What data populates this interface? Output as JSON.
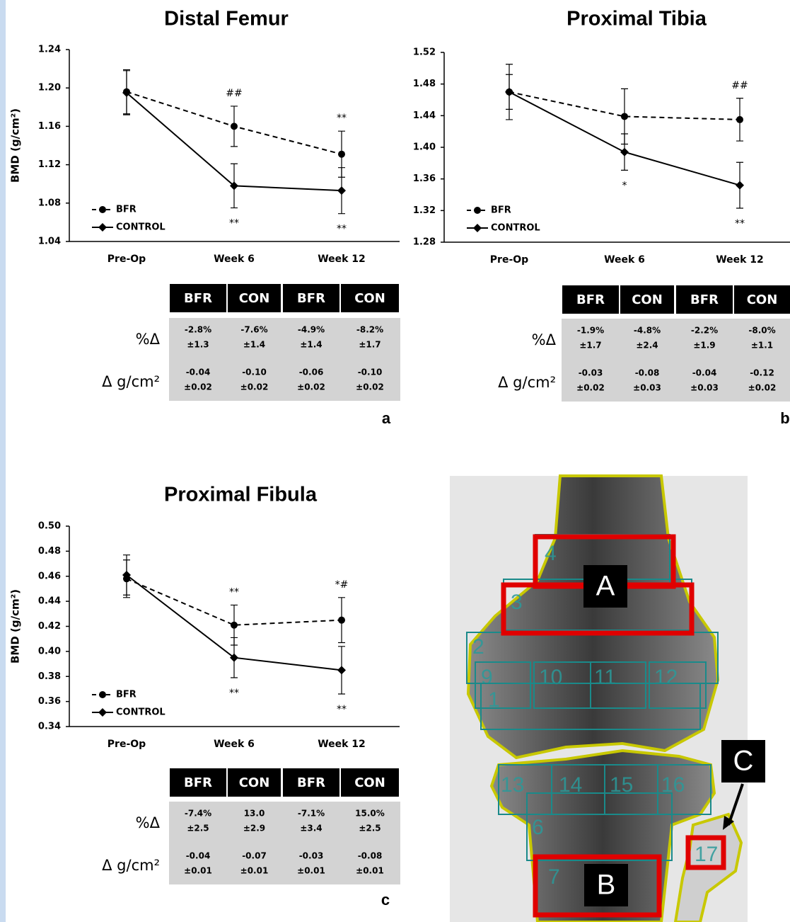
{
  "chart_data": [
    {
      "type": "line",
      "title": "Distal Femur",
      "y_label": "BMD (g/cm²)",
      "categories": [
        "Pre-Op",
        "Week 6",
        "Week 12"
      ],
      "series": [
        {
          "name": "BFR",
          "color": "#000000",
          "line_style": "dashed",
          "marker": "circle",
          "values": [
            1.196,
            1.16,
            1.131
          ],
          "errors": [
            0.023,
            0.021,
            0.024
          ]
        },
        {
          "name": "CONTROL",
          "color": "#000000",
          "line_style": "solid",
          "marker": "diamond",
          "values": [
            1.195,
            1.098,
            1.093
          ],
          "errors": [
            0.023,
            0.023,
            0.024
          ]
        }
      ],
      "ylim": [
        1.04,
        1.24
      ],
      "yticks": [
        1.04,
        1.08,
        1.12,
        1.16,
        {
          "value": 1.2,
          "label": "1.20"
        },
        1.24
      ],
      "legend": "lower left",
      "annotations": [
        {
          "text": "##",
          "x": "Week 6",
          "series": "BFR"
        },
        {
          "text": "**",
          "x": "Week 12",
          "series": "BFR"
        },
        {
          "text": "**",
          "x": "Week 6",
          "series": "CONTROL"
        },
        {
          "text": "**",
          "x": "Week 12",
          "series": "CONTROL"
        }
      ],
      "panel_label": "a",
      "table": {
        "columns": [
          "BFR",
          "CON",
          "BFR",
          "CON"
        ],
        "rows": [
          {
            "label": "%Δ",
            "cells": [
              [
                "-2.8%",
                "±1.3"
              ],
              [
                "-7.6%",
                "±1.4"
              ],
              [
                "-4.9%",
                "±1.4"
              ],
              [
                "-8.2%",
                "±1.7"
              ]
            ]
          },
          {
            "label": "Δ g/cm²",
            "cells": [
              [
                "-0.04",
                "±0.02"
              ],
              [
                "-0.10",
                "±0.02"
              ],
              [
                "-0.06",
                "±0.02"
              ],
              [
                "-0.10",
                "±0.02"
              ]
            ]
          }
        ]
      }
    },
    {
      "type": "line",
      "title": "Proximal Tibia",
      "categories": [
        "Pre-Op",
        "Week 6",
        "Week 12"
      ],
      "series": [
        {
          "name": "BFR",
          "color": "#000000",
          "line_style": "dashed",
          "marker": "circle",
          "values": [
            1.47,
            1.439,
            1.435
          ],
          "errors": [
            0.035,
            0.035,
            0.027
          ]
        },
        {
          "name": "CONTROL",
          "color": "#000000",
          "line_style": "solid",
          "marker": "diamond",
          "values": [
            1.47,
            1.394,
            1.352
          ],
          "errors": [
            0.022,
            0.023,
            0.029
          ]
        }
      ],
      "ylim": [
        1.28,
        1.52
      ],
      "yticks": [
        1.28,
        1.32,
        1.36,
        {
          "value": 1.4,
          "label": "1.40"
        },
        1.44,
        1.48,
        1.52
      ],
      "legend": "lower left",
      "annotations": [
        {
          "text": "##",
          "x": "Week 12",
          "series": "BFR"
        },
        {
          "text": "*",
          "x": "Week 6",
          "series": "CONTROL"
        },
        {
          "text": "**",
          "x": "Week 12",
          "series": "CONTROL"
        }
      ],
      "panel_label": "b",
      "table": {
        "columns": [
          "BFR",
          "CON",
          "BFR",
          "CON"
        ],
        "rows": [
          {
            "label": "%Δ",
            "cells": [
              [
                "-1.9%",
                "±1.7"
              ],
              [
                "-4.8%",
                "±2.4"
              ],
              [
                "-2.2%",
                "±1.9"
              ],
              [
                "-8.0%",
                "±1.1"
              ]
            ]
          },
          {
            "label": "Δ g/cm²",
            "cells": [
              [
                "-0.03",
                "±0.02"
              ],
              [
                "-0.08",
                "±0.03"
              ],
              [
                "-0.04",
                "±0.03"
              ],
              [
                "-0.12",
                "±0.02"
              ]
            ]
          }
        ]
      }
    },
    {
      "type": "line",
      "title": "Proximal Fibula",
      "y_label": "BMD (g/cm²)",
      "categories": [
        "Pre-Op",
        "Week 6",
        "Week 12"
      ],
      "series": [
        {
          "name": "BFR",
          "color": "#000000",
          "line_style": "dashed",
          "marker": "circle",
          "values": [
            0.458,
            0.421,
            0.425
          ],
          "errors": [
            0.015,
            0.016,
            0.018
          ]
        },
        {
          "name": "CONTROL",
          "color": "#000000",
          "line_style": "solid",
          "marker": "diamond",
          "values": [
            0.461,
            0.395,
            0.385
          ],
          "errors": [
            0.016,
            0.016,
            0.019
          ]
        }
      ],
      "ylim": [
        0.34,
        0.5
      ],
      "yticks": [
        0.34,
        0.36,
        0.38,
        {
          "value": 0.4,
          "label": "0.40"
        },
        0.42,
        0.44,
        0.46,
        0.48,
        {
          "value": 0.5,
          "label": "0.50"
        }
      ],
      "legend": "lower left",
      "annotations": [
        {
          "text": "**",
          "x": "Week 6",
          "series": "BFR"
        },
        {
          "text": "*#",
          "x": "Week 12",
          "series": "BFR"
        },
        {
          "text": "**",
          "x": "Week 6",
          "series": "CONTROL"
        },
        {
          "text": "**",
          "x": "Week 12",
          "series": "CONTROL"
        }
      ],
      "panel_label": "c",
      "table": {
        "columns": [
          "BFR",
          "CON",
          "BFR",
          "CON"
        ],
        "rows": [
          {
            "label": "%Δ",
            "cells": [
              [
                "-7.4%",
                "±2.5"
              ],
              [
                "13.0",
                "±2.9"
              ],
              [
                "-7.1%",
                "±3.4"
              ],
              [
                "15.0%",
                "±2.5"
              ]
            ]
          },
          {
            "label": "Δ g/cm²",
            "cells": [
              [
                "-0.04",
                "±0.01"
              ],
              [
                "-0.07",
                "±0.01"
              ],
              [
                "-0.03",
                "±0.01"
              ],
              [
                "-0.08",
                "±0.01"
              ]
            ]
          }
        ]
      }
    }
  ],
  "dexa_image": {
    "region_labels": [
      "4",
      "3",
      "2",
      "9",
      "10",
      "11",
      "12",
      "1",
      "13",
      "14",
      "15",
      "16",
      "6",
      "7",
      "17"
    ],
    "callouts": [
      "A",
      "B",
      "C"
    ]
  }
}
